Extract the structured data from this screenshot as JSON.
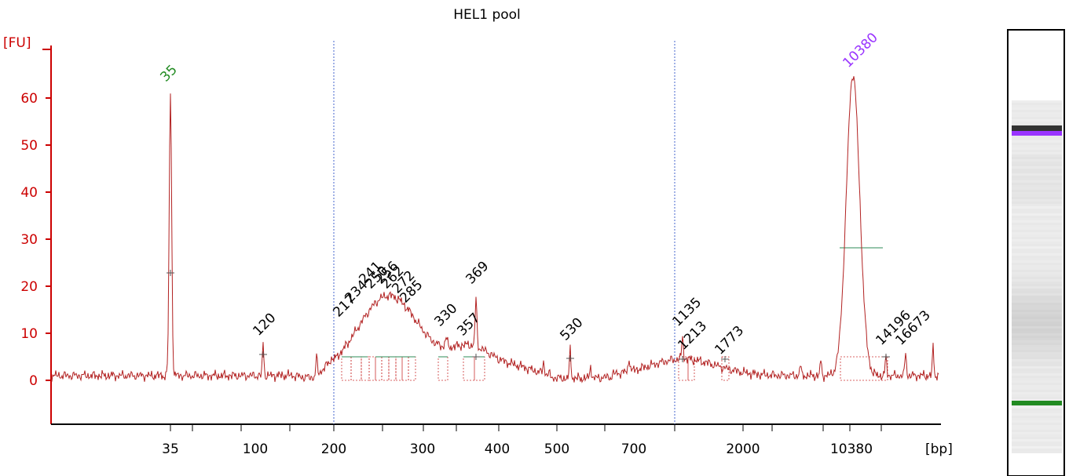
{
  "chart_data": {
    "type": "line",
    "title": "HEL1 pool",
    "ylabel": "[FU]",
    "xlabel": "[bp]",
    "ylim": [
      -10,
      70
    ],
    "y_ticks": [
      0,
      10,
      20,
      30,
      40,
      50,
      60
    ],
    "x_tick_labels": [
      "35",
      "100",
      "200",
      "300",
      "400",
      "500",
      "700",
      "2000",
      "10380"
    ],
    "marker_labels": {
      "lower": "35",
      "upper": "10380"
    },
    "colors": {
      "trace": "#b22222",
      "axis": "#cc0000",
      "lower_marker": "#228b22",
      "upper_marker": "#9933ff",
      "smear": "#2e8b57"
    },
    "peaks": [
      {
        "label": "35",
        "fu": 62
      },
      {
        "label": "120",
        "fu": 8
      },
      {
        "label": "217",
        "fu": 12
      },
      {
        "label": "234",
        "fu": 15
      },
      {
        "label": "241",
        "fu": 19
      },
      {
        "label": "250",
        "fu": 18
      },
      {
        "label": "256",
        "fu": 19
      },
      {
        "label": "262",
        "fu": 18
      },
      {
        "label": "272",
        "fu": 17
      },
      {
        "label": "285",
        "fu": 15
      },
      {
        "label": "330",
        "fu": 10
      },
      {
        "label": "357",
        "fu": 8
      },
      {
        "label": "369",
        "fu": 19
      },
      {
        "label": "530",
        "fu": 7
      },
      {
        "label": "1135",
        "fu": 10
      },
      {
        "label": "1213",
        "fu": 5
      },
      {
        "label": "1773",
        "fu": 4
      },
      {
        "label": "10380",
        "fu": 65
      },
      {
        "label": "14196",
        "fu": 6
      },
      {
        "label": "16673",
        "fu": 6
      }
    ]
  }
}
